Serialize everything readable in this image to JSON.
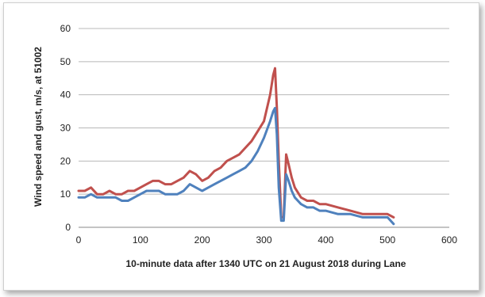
{
  "chart_data": {
    "type": "line",
    "xlabel": "10-minute data after 1340 UTC  on 21 August 2018 during Lane",
    "ylabel": "Wind speed and gust, m/s, at 51002",
    "xlim": [
      0,
      600
    ],
    "ylim": [
      0,
      60
    ],
    "xticks": [
      0,
      100,
      200,
      300,
      400,
      500,
      600
    ],
    "yticks": [
      0,
      10,
      20,
      30,
      40,
      50,
      60
    ],
    "grid": "horizontal",
    "legend": "none",
    "series": [
      {
        "color": "#c0504d",
        "x": [
          0,
          10,
          20,
          30,
          40,
          50,
          60,
          70,
          80,
          90,
          100,
          110,
          120,
          130,
          140,
          150,
          160,
          170,
          180,
          190,
          200,
          210,
          220,
          230,
          240,
          250,
          260,
          270,
          280,
          290,
          300,
          310,
          315,
          318,
          321,
          324,
          328,
          332,
          336,
          340,
          345,
          350,
          360,
          370,
          380,
          390,
          400,
          420,
          440,
          460,
          480,
          500,
          510
        ],
        "y": [
          11,
          11,
          12,
          10,
          10,
          11,
          10,
          10,
          11,
          11,
          12,
          13,
          14,
          14,
          13,
          13,
          14,
          15,
          17,
          16,
          14,
          15,
          17,
          18,
          20,
          21,
          22,
          24,
          26,
          29,
          32,
          40,
          46,
          48,
          36,
          20,
          3,
          3,
          22,
          19,
          15,
          12,
          9,
          8,
          8,
          7,
          7,
          6,
          5,
          4,
          4,
          4,
          3
        ]
      },
      {
        "color": "#4f81bd",
        "x": [
          0,
          10,
          20,
          30,
          40,
          50,
          60,
          70,
          80,
          90,
          100,
          110,
          120,
          130,
          140,
          150,
          160,
          170,
          180,
          190,
          200,
          210,
          220,
          230,
          240,
          250,
          260,
          270,
          280,
          290,
          300,
          310,
          315,
          318,
          321,
          324,
          328,
          332,
          336,
          340,
          345,
          350,
          360,
          370,
          380,
          390,
          400,
          420,
          440,
          460,
          480,
          500,
          510
        ],
        "y": [
          9,
          9,
          10,
          9,
          9,
          9,
          9,
          8,
          8,
          9,
          10,
          11,
          11,
          11,
          10,
          10,
          10,
          11,
          13,
          12,
          11,
          12,
          13,
          14,
          15,
          16,
          17,
          18,
          20,
          23,
          27,
          32,
          35,
          36,
          28,
          12,
          2,
          2,
          16,
          14,
          11,
          9,
          7,
          6,
          6,
          5,
          5,
          4,
          4,
          3,
          3,
          3,
          1
        ]
      }
    ]
  }
}
